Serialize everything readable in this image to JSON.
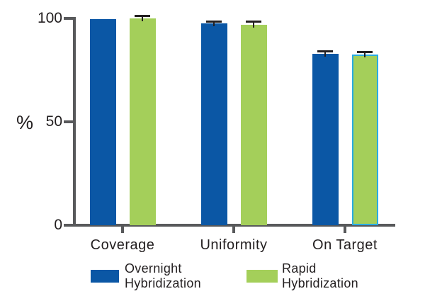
{
  "chart_data": {
    "type": "bar",
    "title": "",
    "xlabel": "",
    "ylabel": "%",
    "categories": [
      "Coverage",
      "Uniformity",
      "On Target"
    ],
    "series": [
      {
        "name": "Overnight Hybridization",
        "color": "#0b57a5",
        "values": [
          99.5,
          97.5,
          83
        ],
        "errors": [
          0,
          0.6,
          0.7
        ]
      },
      {
        "name": "Rapid Hybridization",
        "color": "#a4cf5a",
        "values": [
          100,
          97,
          82.5
        ],
        "errors": [
          0.8,
          0.8,
          0.7
        ]
      }
    ],
    "yticks": [
      0,
      50,
      100
    ],
    "ylim": [
      0,
      100
    ],
    "grid": false,
    "legend_position": "bottom",
    "axis_color": "#58595b",
    "error_bar_color": "#231f20",
    "highlight_outline": {
      "series_index": 1,
      "category_index": 2,
      "color": "#29abe2"
    }
  },
  "legend": {
    "entries": [
      {
        "line1": "Overnight",
        "line2": "Hybridization",
        "color": "#0b57a5"
      },
      {
        "line1": "Rapid",
        "line2": "Hybridization",
        "color": "#a4cf5a"
      }
    ]
  }
}
